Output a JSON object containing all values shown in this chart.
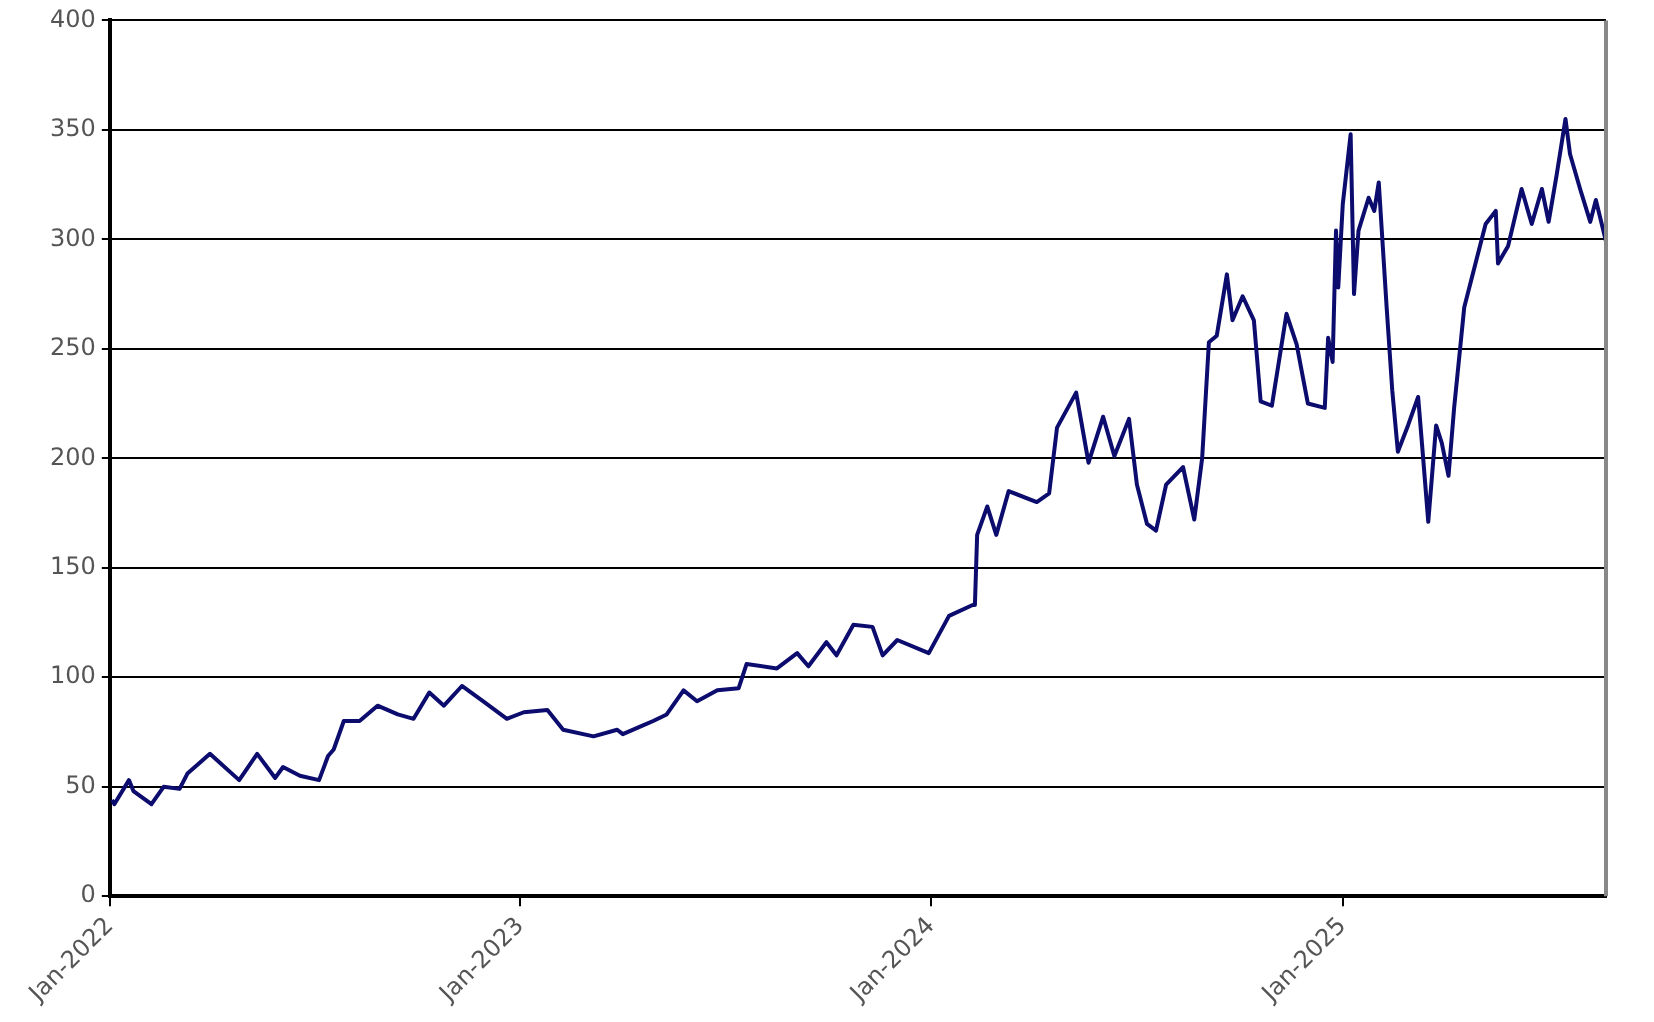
{
  "chart_data": {
    "type": "line",
    "x": [
      "2022-01-03",
      "2022-01-05",
      "2022-01-18",
      "2022-01-22",
      "2022-02-07",
      "2022-02-18",
      "2022-03-04",
      "2022-03-11",
      "2022-03-31",
      "2022-04-26",
      "2022-05-12",
      "2022-05-28",
      "2022-06-04",
      "2022-06-19",
      "2022-07-06",
      "2022-07-14",
      "2022-07-19",
      "2022-07-28",
      "2022-08-11",
      "2022-08-27",
      "2022-09-14",
      "2022-09-28",
      "2022-10-12",
      "2022-10-25",
      "2022-11-10",
      "2022-11-29",
      "2022-12-20",
      "2023-01-04",
      "2023-01-25",
      "2023-02-08",
      "2023-03-07",
      "2023-03-28",
      "2023-04-02",
      "2023-04-20",
      "2023-04-29",
      "2023-05-11",
      "2023-05-26",
      "2023-06-07",
      "2023-06-25",
      "2023-07-14",
      "2023-07-21",
      "2023-08-17",
      "2023-09-04",
      "2023-09-14",
      "2023-09-30",
      "2023-10-09",
      "2023-10-24",
      "2023-11-10",
      "2023-11-19",
      "2023-12-02",
      "2023-12-30",
      "2024-01-17",
      "2024-02-07",
      "2024-02-09",
      "2024-02-11",
      "2024-02-20",
      "2024-02-28",
      "2024-03-10",
      "2024-04-04",
      "2024-04-15",
      "2024-04-22",
      "2024-05-09",
      "2024-05-20",
      "2024-06-02",
      "2024-06-12",
      "2024-06-25",
      "2024-07-02",
      "2024-07-11",
      "2024-07-19",
      "2024-07-28",
      "2024-08-12",
      "2024-08-22",
      "2024-08-29",
      "2024-09-04",
      "2024-09-11",
      "2024-09-20",
      "2024-09-25",
      "2024-10-04",
      "2024-10-14",
      "2024-10-20",
      "2024-10-30",
      "2024-11-12",
      "2024-11-21",
      "2024-12-01",
      "2024-12-16",
      "2024-12-19",
      "2024-12-23",
      "2024-12-26",
      "2024-12-28",
      "2025-01-01",
      "2025-01-08",
      "2025-01-11",
      "2025-01-15",
      "2025-01-24",
      "2025-01-29",
      "2025-02-02",
      "2025-02-09",
      "2025-02-14",
      "2025-02-19",
      "2025-02-28",
      "2025-03-09",
      "2025-03-13",
      "2025-03-18",
      "2025-03-25",
      "2025-03-30",
      "2025-04-05",
      "2025-04-10",
      "2025-04-19",
      "2025-04-30",
      "2025-05-08",
      "2025-05-17",
      "2025-05-19",
      "2025-05-28",
      "2025-06-09",
      "2025-06-18",
      "2025-06-27",
      "2025-07-03",
      "2025-07-10",
      "2025-07-18",
      "2025-07-22",
      "2025-07-31",
      "2025-08-09",
      "2025-08-14",
      "2025-08-23"
    ],
    "series": [
      {
        "color": "#0c0c6e",
        "values": [
          44,
          42,
          53,
          48,
          42,
          50,
          49,
          56,
          65,
          53,
          65,
          54,
          59,
          55,
          53,
          64,
          67,
          80,
          80,
          87,
          83,
          81,
          93,
          87,
          96,
          89,
          81,
          84,
          85,
          76,
          73,
          76,
          74,
          78,
          80,
          83,
          94,
          89,
          94,
          95,
          106,
          104,
          111,
          105,
          116,
          110,
          124,
          123,
          110,
          117,
          111,
          128,
          133,
          133,
          165,
          178,
          165,
          185,
          180,
          184,
          214,
          230,
          198,
          219,
          201,
          218,
          188,
          170,
          167,
          188,
          196,
          172,
          200,
          253,
          256,
          284,
          263,
          274,
          263,
          226,
          224,
          266,
          252,
          225,
          223,
          255,
          244,
          304,
          278,
          316,
          348,
          275,
          304,
          319,
          313,
          326,
          269,
          231,
          203,
          215,
          228,
          203,
          171,
          215,
          207,
          192,
          223,
          269,
          291,
          307,
          313,
          289,
          297,
          323,
          307,
          323,
          308,
          329,
          355,
          339,
          323,
          308,
          318,
          299
        ]
      }
    ],
    "xlim": [
      "2022-01-01",
      "2025-08-23"
    ],
    "xticks": [
      {
        "value": "2022-01-01",
        "label": "Jan-2022"
      },
      {
        "value": "2023-01-01",
        "label": "Jan-2023"
      },
      {
        "value": "2024-01-01",
        "label": "Jan-2024"
      },
      {
        "value": "2025-01-01",
        "label": "Jan-2025"
      }
    ],
    "ylim": [
      0,
      400
    ],
    "yticks": [
      0,
      50,
      100,
      150,
      200,
      250,
      300,
      350,
      400
    ],
    "grid": "y",
    "legend": false,
    "marker": "none",
    "line_style": "solid"
  }
}
